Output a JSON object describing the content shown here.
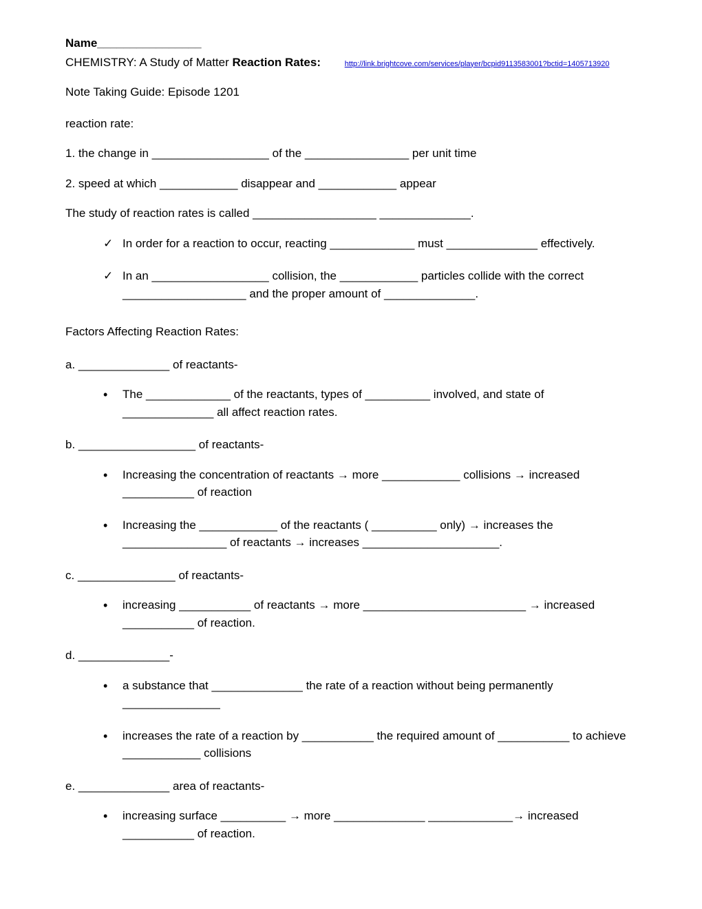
{
  "header": {
    "name_label": "Name________________",
    "course_text": "CHEMISTRY: A Study of Matter ",
    "title_bold": "Reaction Rates:",
    "link_text": "http://link.brightcove.com/services/player/bcpid9113583001?bctid=1405713920",
    "subtitle": "Note Taking Guide: Episode 1201",
    "intro": "reaction rate:"
  },
  "lines": {
    "l1": "1. the change in __________________ of the ________________ per unit time",
    "l2": "2. speed at which ____________ disappear and ____________ appear",
    "l3": "The study of reaction rates is called ___________________ ______________.",
    "check1": "In order for a reaction to occur, reacting _____________ must ______________ effectively.",
    "check2": "In an __________________ collision, the ____________ particles collide with the correct ___________________ and the proper amount of ______________.",
    "factors_head": "Factors Affecting Reaction Rates:",
    "a": "a. ______________ of reactants-",
    "a_b1": "The _____________ of the reactants, types of __________ involved, and state of ______________ all affect reaction rates.",
    "b": "b. __________________ of reactants-",
    "b_b1": "Increasing the concentration of reactants → more ____________ collisions → increased ___________ of reaction",
    "b_b2": "Increasing the ____________ of the reactants ( __________ only) → increases the ________________ of reactants → increases _____________________.",
    "c": "c. _______________ of reactants-",
    "c_b1": "increasing ___________ of reactants → more _________________________ → increased ___________ of reaction.",
    "d": "d. ______________-",
    "d_b1": "a substance that ______________ the rate of a reaction without being permanently _______________",
    "d_b2": "increases the rate of a reaction by ___________ the required amount of ___________ to achieve ____________ collisions",
    "e": "e. ______________ area of reactants-",
    "e_b1": "increasing surface __________ → more ______________ _____________→ increased ___________ of reaction."
  }
}
